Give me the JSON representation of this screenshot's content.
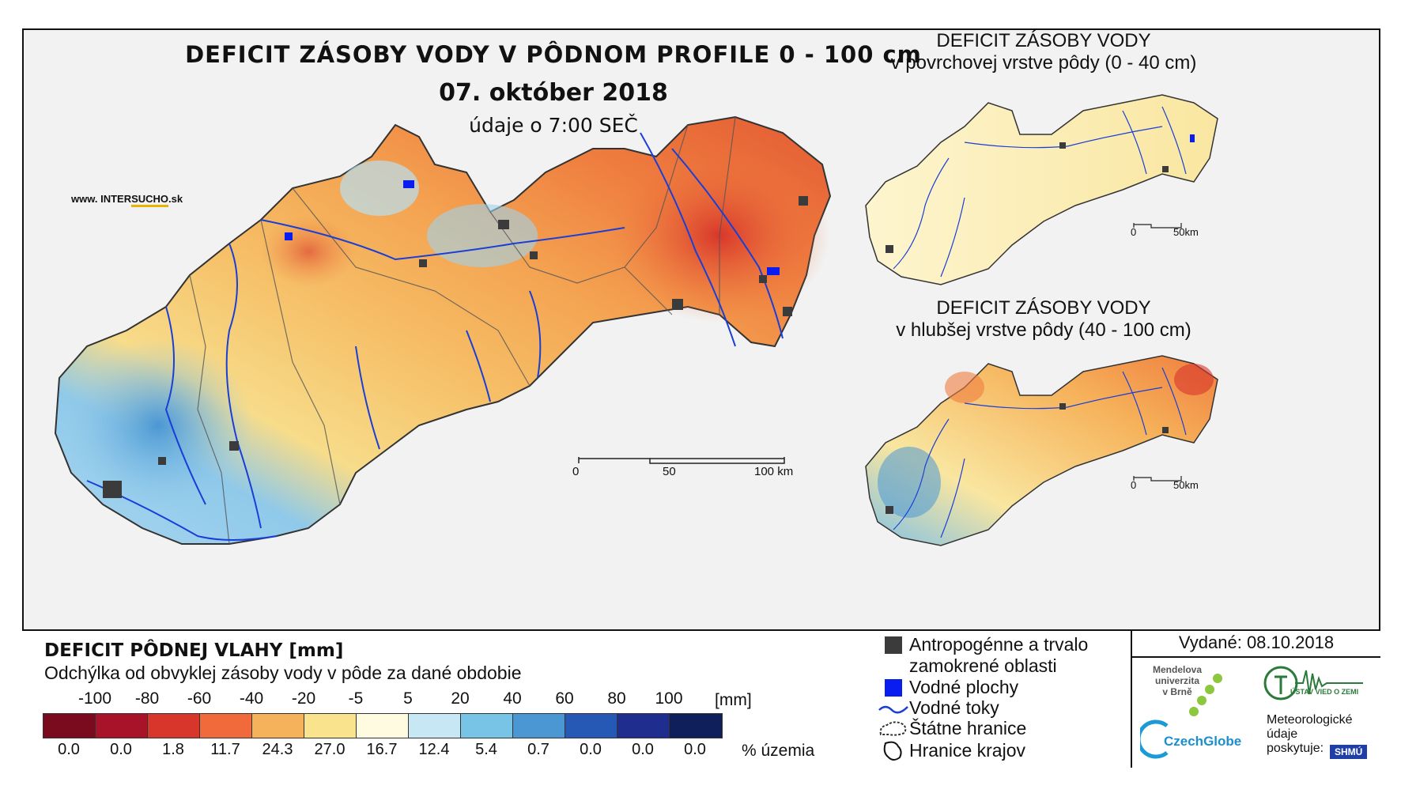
{
  "title": {
    "main": "DEFICIT ZÁSOBY VODY V PÔDNOM PROFILE 0 - 100 cm",
    "date": "07. október 2018",
    "time": "údaje o 7:00 SEČ"
  },
  "website": {
    "prefix": "www. INTER",
    "brand": "SUCHO",
    "suffix": ".sk"
  },
  "inset_top": {
    "line1": "DEFICIT ZÁSOBY VODY",
    "line2": "v povrchovej vrstve pôdy (0 - 40 cm)"
  },
  "inset_bottom": {
    "line1": "DEFICIT ZÁSOBY VODY",
    "line2": "v hlubšej vrstve pôdy (40 - 100 cm)"
  },
  "scale_main": {
    "labels": [
      "0",
      "50",
      "100 km"
    ]
  },
  "scale_inset": {
    "labels": [
      "0",
      "50km"
    ]
  },
  "legend": {
    "title": "DEFICIT PÔDNEJ VLAHY [mm]",
    "subtitle": "Odchýlka od obvyklej zásoby vody v pôde za dané obdobie",
    "ticks": [
      "-100",
      "-80",
      "-60",
      "-40",
      "-20",
      "-5",
      "5",
      "20",
      "40",
      "60",
      "80",
      "100"
    ],
    "unit": "[mm]",
    "colors": [
      "#7a0a1e",
      "#a8132a",
      "#d8362b",
      "#f06a3c",
      "#f6b25a",
      "#f9e38c",
      "#fffbe0",
      "#c8e7f4",
      "#78c4e6",
      "#4a97d4",
      "#2559b5",
      "#1f2d8f",
      "#0e1f5c"
    ],
    "percent": [
      "0.0",
      "0.0",
      "1.8",
      "11.7",
      "24.3",
      "27.0",
      "16.7",
      "12.4",
      "5.4",
      "0.7",
      "0.0",
      "0.0",
      "0.0"
    ],
    "percent_unit": "% územia"
  },
  "symbols": {
    "urban": "Antropogénne a trvalo zamokrené oblasti",
    "water": "Vodné plochy",
    "rivers": "Vodné toky",
    "border": "Štátne hranice",
    "regions": "Hranice krajov"
  },
  "issued": "Vydané: 08.10.2018",
  "logos": {
    "mendel": [
      "Mendelova",
      "univerzita",
      "v Brně"
    ],
    "czechglobe": "CzechGlobe",
    "uvz": "ÚSTAV VIED O ZEMI",
    "met": [
      "Meteorologické",
      "údaje",
      "poskytuje:"
    ],
    "shmu": "SHMÚ"
  }
}
